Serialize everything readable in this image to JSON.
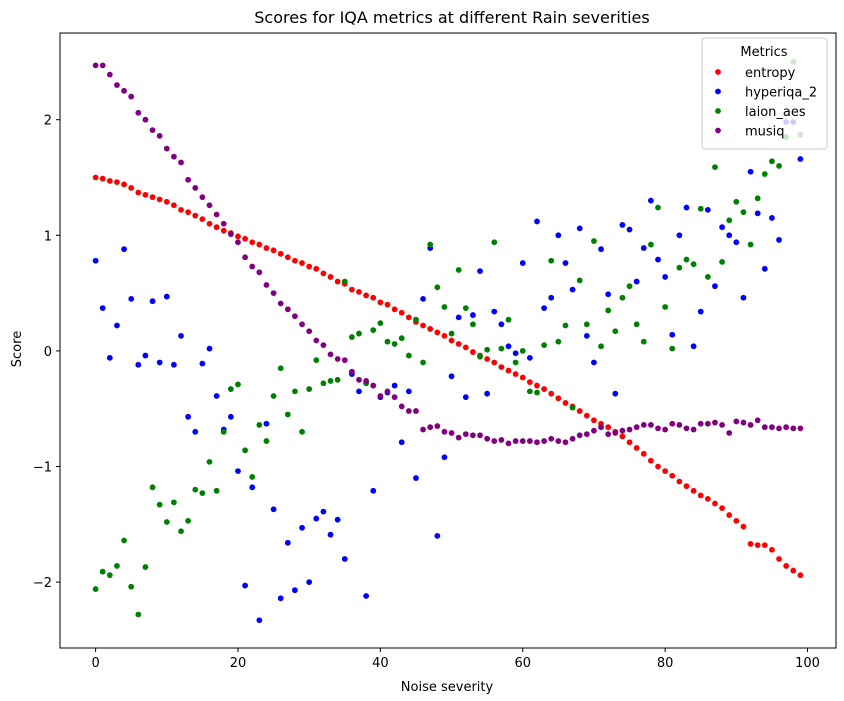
{
  "chart_data": {
    "type": "scatter",
    "title": "Scores for IQA metrics at different Rain severities",
    "xlabel": "Noise severity",
    "ylabel": "Score",
    "xlim": [
      -5,
      104
    ],
    "ylim": [
      -2.57,
      2.75
    ],
    "x_ticks": [
      0,
      20,
      40,
      60,
      80,
      100
    ],
    "y_ticks": [
      -2,
      -1,
      0,
      1,
      2
    ],
    "grid": false,
    "legend": {
      "title": "Metrics",
      "placement": "upper-right"
    },
    "x": [
      0,
      1,
      2,
      3,
      4,
      5,
      6,
      7,
      8,
      9,
      10,
      11,
      12,
      13,
      14,
      15,
      16,
      17,
      18,
      19,
      20,
      21,
      22,
      23,
      24,
      25,
      26,
      27,
      28,
      29,
      30,
      31,
      32,
      33,
      34,
      35,
      36,
      37,
      38,
      39,
      40,
      41,
      42,
      43,
      44,
      45,
      46,
      47,
      48,
      49,
      50,
      51,
      52,
      53,
      54,
      55,
      56,
      57,
      58,
      59,
      60,
      61,
      62,
      63,
      64,
      65,
      66,
      67,
      68,
      69,
      70,
      71,
      72,
      73,
      74,
      75,
      76,
      77,
      78,
      79,
      80,
      81,
      82,
      83,
      84,
      85,
      86,
      87,
      88,
      89,
      90,
      91,
      92,
      93,
      94,
      95,
      96,
      97,
      98,
      99
    ],
    "series": [
      {
        "name": "entropy",
        "color": "#ff0000",
        "values": [
          1.5,
          1.49,
          1.47,
          1.46,
          1.44,
          1.41,
          1.37,
          1.35,
          1.33,
          1.31,
          1.29,
          1.26,
          1.22,
          1.2,
          1.17,
          1.14,
          1.1,
          1.07,
          1.04,
          1.02,
          0.99,
          0.97,
          0.94,
          0.92,
          0.89,
          0.87,
          0.84,
          0.81,
          0.78,
          0.76,
          0.73,
          0.71,
          0.67,
          0.64,
          0.6,
          0.58,
          0.53,
          0.51,
          0.48,
          0.46,
          0.42,
          0.4,
          0.36,
          0.33,
          0.29,
          0.25,
          0.22,
          0.19,
          0.16,
          0.13,
          0.09,
          0.06,
          0.03,
          -0.01,
          -0.04,
          -0.07,
          -0.1,
          -0.14,
          -0.17,
          -0.2,
          -0.23,
          -0.27,
          -0.3,
          -0.33,
          -0.37,
          -0.41,
          -0.45,
          -0.48,
          -0.52,
          -0.56,
          -0.6,
          -0.63,
          -0.66,
          -0.7,
          -0.74,
          -0.79,
          -0.84,
          -0.89,
          -0.95,
          -1.0,
          -1.04,
          -1.08,
          -1.13,
          -1.17,
          -1.21,
          -1.25,
          -1.28,
          -1.32,
          -1.36,
          -1.42,
          -1.47,
          -1.52,
          -1.67,
          -1.68,
          -1.68,
          -1.72,
          -1.8,
          -1.86,
          -1.9,
          -1.94
        ]
      },
      {
        "name": "hyperiqa_2",
        "color": "#0000ff",
        "values": [
          0.78,
          0.37,
          -0.06,
          0.22,
          0.88,
          0.45,
          -0.12,
          -0.04,
          0.43,
          -0.1,
          0.47,
          -0.12,
          0.13,
          -0.57,
          -0.7,
          -0.11,
          0.02,
          -0.39,
          -0.68,
          -0.57,
          -1.04,
          -2.03,
          -1.18,
          -2.33,
          -0.63,
          -1.37,
          -2.14,
          -1.66,
          -2.07,
          -1.53,
          -2.0,
          -1.45,
          -1.39,
          -1.59,
          -1.46,
          -1.8,
          -0.2,
          -0.35,
          -2.12,
          -1.21,
          -0.4,
          -0.36,
          -0.3,
          -0.79,
          -0.35,
          -1.1,
          0.45,
          0.89,
          -1.6,
          -0.92,
          -0.22,
          0.29,
          -0.4,
          0.31,
          0.69,
          -0.37,
          0.34,
          0.23,
          0.04,
          -0.02,
          0.76,
          -0.06,
          1.12,
          0.37,
          0.46,
          1.0,
          0.76,
          0.53,
          1.06,
          0.13,
          -0.1,
          0.88,
          0.49,
          -0.37,
          1.09,
          1.05,
          0.6,
          0.89,
          1.3,
          0.79,
          0.64,
          0.14,
          1.0,
          1.24,
          0.04,
          0.34,
          1.22,
          0.56,
          1.07,
          1.0,
          0.94,
          0.46,
          1.55,
          1.19,
          0.71,
          1.15,
          0.96,
          1.98,
          1.98,
          1.66
        ]
      },
      {
        "name": "laion_aes",
        "color": "#008000",
        "values": [
          -2.06,
          -1.91,
          -1.94,
          -1.86,
          -1.64,
          -2.04,
          -2.28,
          -1.87,
          -1.18,
          -1.33,
          -1.48,
          -1.31,
          -1.56,
          -1.47,
          -1.2,
          -1.23,
          -0.96,
          -1.21,
          -0.7,
          -0.33,
          -0.29,
          -0.86,
          -1.09,
          -0.64,
          -0.78,
          -0.39,
          -0.15,
          -0.55,
          -0.35,
          -0.7,
          -0.33,
          -0.08,
          -0.28,
          -0.26,
          -0.25,
          0.6,
          0.12,
          0.15,
          -0.28,
          0.18,
          0.24,
          0.08,
          0.06,
          0.11,
          -0.04,
          0.27,
          -0.1,
          0.92,
          0.55,
          0.38,
          0.15,
          0.7,
          0.37,
          0.23,
          -0.05,
          0.01,
          0.94,
          0.02,
          0.27,
          -0.1,
          0.0,
          -0.35,
          -0.36,
          0.05,
          0.78,
          0.08,
          0.22,
          -0.49,
          0.61,
          0.23,
          0.95,
          0.04,
          0.35,
          0.17,
          0.46,
          0.56,
          0.23,
          0.08,
          0.92,
          1.24,
          0.38,
          0.02,
          0.72,
          0.79,
          0.75,
          1.23,
          0.64,
          1.59,
          0.77,
          1.13,
          1.29,
          1.2,
          0.92,
          1.32,
          1.53,
          1.64,
          1.6,
          1.85,
          2.5,
          1.87
        ]
      },
      {
        "name": "musiq",
        "color": "#800080",
        "values": [
          2.47,
          2.47,
          2.39,
          2.3,
          2.25,
          2.2,
          2.06,
          2.0,
          1.91,
          1.86,
          1.75,
          1.68,
          1.63,
          1.48,
          1.41,
          1.33,
          1.26,
          1.18,
          1.1,
          1.01,
          0.94,
          0.81,
          0.73,
          0.68,
          0.57,
          0.5,
          0.41,
          0.36,
          0.3,
          0.23,
          0.17,
          0.09,
          0.05,
          -0.03,
          -0.07,
          -0.08,
          -0.18,
          -0.25,
          -0.26,
          -0.3,
          -0.39,
          -0.35,
          -0.4,
          -0.48,
          -0.52,
          -0.52,
          -0.68,
          -0.66,
          -0.65,
          -0.7,
          -0.71,
          -0.75,
          -0.72,
          -0.73,
          -0.73,
          -0.76,
          -0.78,
          -0.77,
          -0.8,
          -0.78,
          -0.78,
          -0.78,
          -0.79,
          -0.78,
          -0.76,
          -0.78,
          -0.79,
          -0.76,
          -0.73,
          -0.72,
          -0.69,
          -0.66,
          -0.72,
          -0.71,
          -0.69,
          -0.68,
          -0.66,
          -0.64,
          -0.64,
          -0.67,
          -0.68,
          -0.63,
          -0.64,
          -0.67,
          -0.68,
          -0.63,
          -0.63,
          -0.62,
          -0.64,
          -0.71,
          -0.61,
          -0.62,
          -0.64,
          -0.6,
          -0.66,
          -0.66,
          -0.67,
          -0.66,
          -0.67,
          -0.67
        ]
      }
    ]
  }
}
